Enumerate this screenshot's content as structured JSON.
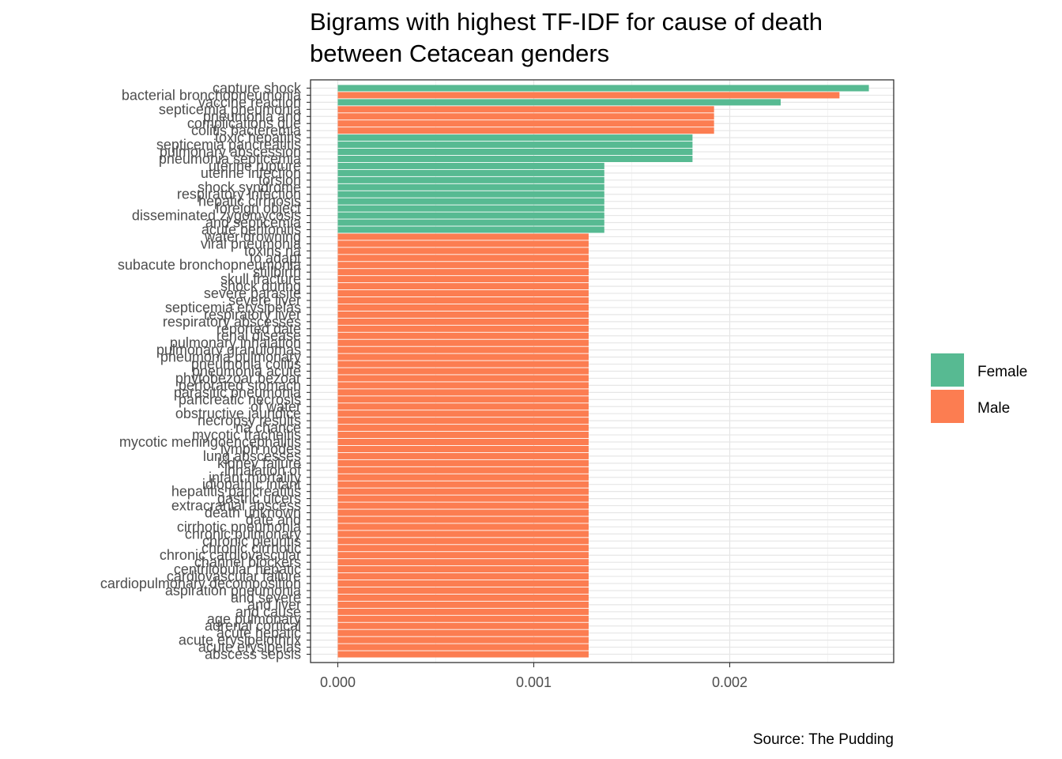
{
  "chart_data": {
    "type": "bar",
    "orientation": "horizontal",
    "title": "Bigrams with highest TF-IDF for cause of death\n between Cetacean genders",
    "xlabel": "",
    "ylabel": "",
    "xlim": [
      0,
      0.0028
    ],
    "x_ticks": [
      "0.000",
      "0.001",
      "0.002"
    ],
    "x_tick_values": [
      0,
      0.001,
      0.002
    ],
    "legend": {
      "position": "right",
      "entries": [
        {
          "name": "Female",
          "color": "#57BA92"
        },
        {
          "name": "Male",
          "color": "#FC7D51"
        }
      ]
    },
    "caption": "Source: The Pudding",
    "categories": [
      "capture shock",
      "bacterial bronchopneumonia",
      "vaccine reaction",
      "septicemia pneumonia",
      "pneumonia and",
      "complications due",
      "colitis bacteremia",
      "toxic hepatitis",
      "septicemia pancreatitis",
      "pulmonary abscession",
      "pneumonia septicemia",
      "uterine rupture",
      "uterine infection",
      "torsion",
      "shock syndrome",
      "respiratory infection",
      "hepatic cirrhosis",
      "foreign object",
      "disseminated zygomycosis",
      "and septicemia",
      "acute peritonitis",
      "water drowning",
      "viral pneumonia",
      "toxins na",
      "to adapt",
      "subacute bronchopneumonia",
      "stillbirth",
      "skull fracture",
      "shock during",
      "severe parasite",
      "severe liver",
      "septicemia erysipelas",
      "respiratory liver",
      "respiratory abscesses",
      "reported date",
      "renal disease",
      "pulmonary inhalation",
      "pulmonary granulomas",
      "pneumonia pulmonary",
      "pneumonia colitis",
      "pneumonia acute",
      "phytobezoar bezoar",
      "perforated stomach",
      "parasitic pneumonia",
      "pancreatic necrosis",
      "of water",
      "obstructive jaundice",
      "necropsy results",
      "na chance",
      "mycotic tracheitis",
      "mycotic meningoencephalitis",
      "lymph nodes",
      "lung abscesses",
      "kidney failure",
      "inhalation of",
      "infant mortality",
      "idiopathic infant",
      "hepatitis pancreatitis",
      "gastric ulcers",
      "extracranial abscess",
      "death unknown",
      "date and",
      "cirrhotic pneumonia",
      "chronic pulmonary",
      "chronic pleuritis",
      "chronic cirrhotic",
      "chronic cardiovascular",
      "channel blockers",
      "centrilobular hepatic",
      "cardiovascular failure",
      "cardiopulmonary decomposition",
      "aspiration pneumonia",
      "and severe",
      "and liver",
      "and cause",
      "age pulmonary",
      "adrenal cortical",
      "acute hepatic",
      "acute erysipelothrix",
      "acute erysipelas",
      "abscess sepsis"
    ],
    "series": [
      {
        "name": "Female",
        "color": "#57BA92",
        "values": [
          0.00271,
          null,
          0.00226,
          null,
          null,
          null,
          null,
          0.00181,
          0.00181,
          0.00181,
          0.00181,
          0.00136,
          0.00136,
          0.00136,
          0.00136,
          0.00136,
          0.00136,
          0.00136,
          0.00136,
          0.00136,
          0.00136,
          null,
          null,
          null,
          null,
          null,
          null,
          null,
          null,
          null,
          null,
          null,
          null,
          null,
          null,
          null,
          null,
          null,
          null,
          null,
          null,
          null,
          null,
          null,
          null,
          null,
          null,
          null,
          null,
          null,
          null,
          null,
          null,
          null,
          null,
          null,
          null,
          null,
          null,
          null,
          null,
          null,
          null,
          null,
          null,
          null,
          null,
          null,
          null,
          null,
          null,
          null,
          null,
          null,
          null,
          null,
          null,
          null,
          null,
          null,
          null
        ]
      },
      {
        "name": "Male",
        "color": "#FC7D51",
        "values": [
          null,
          0.00256,
          null,
          0.00192,
          0.00192,
          0.00192,
          0.00192,
          null,
          null,
          null,
          null,
          null,
          null,
          null,
          null,
          null,
          null,
          null,
          null,
          null,
          null,
          0.00128,
          0.00128,
          0.00128,
          0.00128,
          0.00128,
          0.00128,
          0.00128,
          0.00128,
          0.00128,
          0.00128,
          0.00128,
          0.00128,
          0.00128,
          0.00128,
          0.00128,
          0.00128,
          0.00128,
          0.00128,
          0.00128,
          0.00128,
          0.00128,
          0.00128,
          0.00128,
          0.00128,
          0.00128,
          0.00128,
          0.00128,
          0.00128,
          0.00128,
          0.00128,
          0.00128,
          0.00128,
          0.00128,
          0.00128,
          0.00128,
          0.00128,
          0.00128,
          0.00128,
          0.00128,
          0.00128,
          0.00128,
          0.00128,
          0.00128,
          0.00128,
          0.00128,
          0.00128,
          0.00128,
          0.00128,
          0.00128,
          0.00128,
          0.00128,
          0.00128,
          0.00128,
          0.00128,
          0.00128,
          0.00128,
          0.00128,
          0.00128,
          0.00128,
          0.00128
        ]
      }
    ]
  }
}
